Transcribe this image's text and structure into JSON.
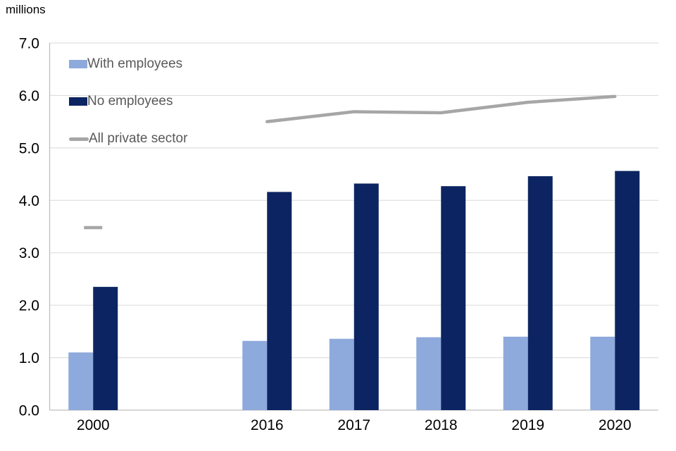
{
  "title": "millions",
  "legend": {
    "items": [
      {
        "label": "With employees",
        "marker": "box",
        "color": "#8EA9DB"
      },
      {
        "label": "No employees",
        "marker": "box",
        "color": "#0C2461"
      },
      {
        "label": "All private sector",
        "marker": "line",
        "color": "#A6A6A6"
      }
    ]
  },
  "chart_data": {
    "type": "bar",
    "subtype": "grouped-bar-with-line-overlay",
    "title": "millions",
    "categories": [
      "2000",
      "2016",
      "2017",
      "2018",
      "2019",
      "2020"
    ],
    "series": [
      {
        "name": "With employees",
        "type": "bar",
        "color": "#8EA9DB",
        "values": [
          1.1,
          1.32,
          1.36,
          1.39,
          1.4,
          1.4
        ]
      },
      {
        "name": "No employees",
        "type": "bar",
        "color": "#0C2461",
        "values": [
          2.35,
          4.16,
          4.32,
          4.27,
          4.46,
          4.56
        ]
      },
      {
        "name": "All private sector",
        "type": "line",
        "color": "#A6A6A6",
        "values": [
          3.48,
          5.5,
          5.69,
          5.67,
          5.87,
          5.98
        ]
      }
    ],
    "ylabel": "millions",
    "xlabel": "",
    "ylim": [
      0,
      7
    ],
    "yticks": [
      0,
      1,
      2,
      3,
      4,
      5,
      6,
      7
    ],
    "ytick_labels": [
      "0.0",
      "1.0",
      "2.0",
      "3.0",
      "4.0",
      "5.0",
      "6.0",
      "7.0"
    ],
    "grid": true,
    "legend_position": "upper-left-inside",
    "layout_hints": {
      "empty_category_slot_between_2000_and_2016": true,
      "isolated_first_line_point_drawn_as_dash": true
    }
  },
  "colors": {
    "background": "#FFFFFF",
    "gridline": "#D9D9D9",
    "axis_line": "#BFBFBF",
    "tick_text": "#000000",
    "legend_text": "#595959"
  }
}
